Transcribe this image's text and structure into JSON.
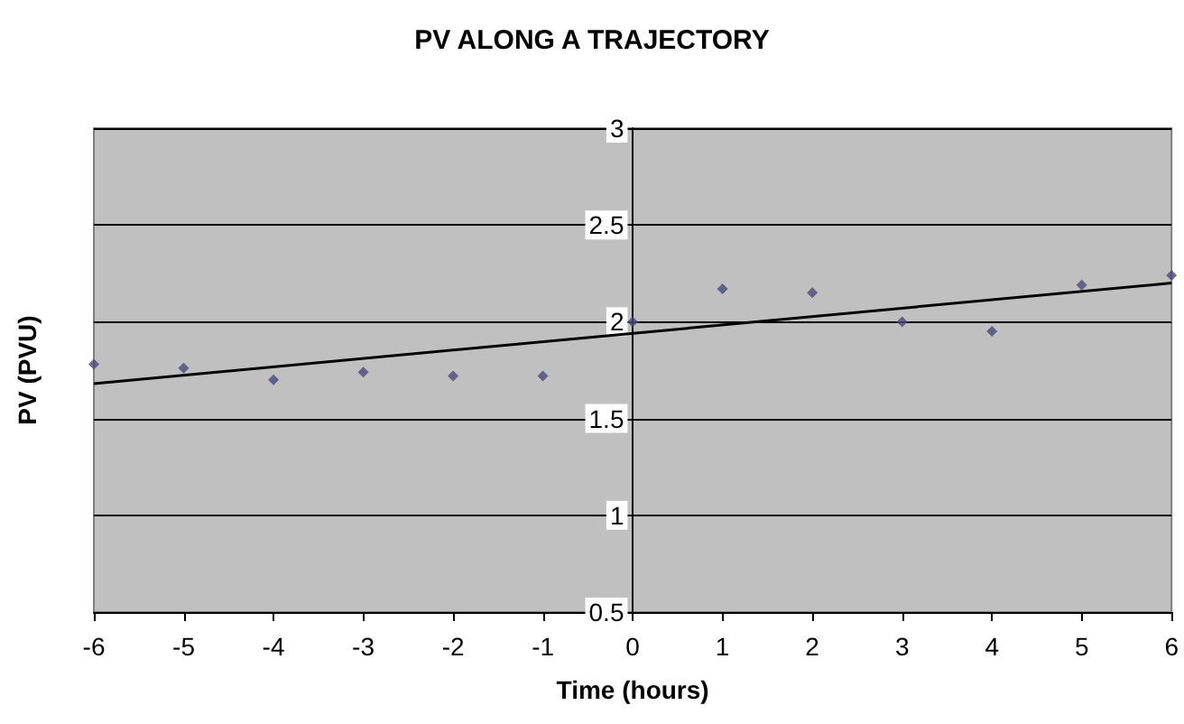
{
  "chart_data": {
    "type": "scatter",
    "title": "PV ALONG A TRAJECTORY",
    "xlabel": "Time (hours)",
    "ylabel": "PV (PVU)",
    "x": [
      -6,
      -5,
      -4,
      -3,
      -2,
      -1,
      0,
      1,
      2,
      3,
      4,
      5,
      6
    ],
    "series": [
      {
        "color": "#4a4a7a",
        "marker": "diamond",
        "values": [
          1.78,
          1.76,
          1.7,
          1.74,
          1.72,
          1.72,
          2.0,
          2.17,
          2.15,
          2.0,
          1.95,
          2.19,
          2.24
        ]
      },
      {
        "type": "line",
        "color": "#000000",
        "marker": "none",
        "x": [
          -6,
          6
        ],
        "values": [
          1.68,
          2.2
        ]
      }
    ],
    "xlim": [
      -6,
      6
    ],
    "xticks": [
      -6,
      -5,
      -4,
      -3,
      -2,
      -1,
      0,
      1,
      2,
      3,
      4,
      5,
      6
    ],
    "ylim": [
      0.5,
      3
    ],
    "yticks": [
      0.5,
      1,
      1.5,
      2,
      2.5,
      3
    ],
    "grid": "y"
  }
}
